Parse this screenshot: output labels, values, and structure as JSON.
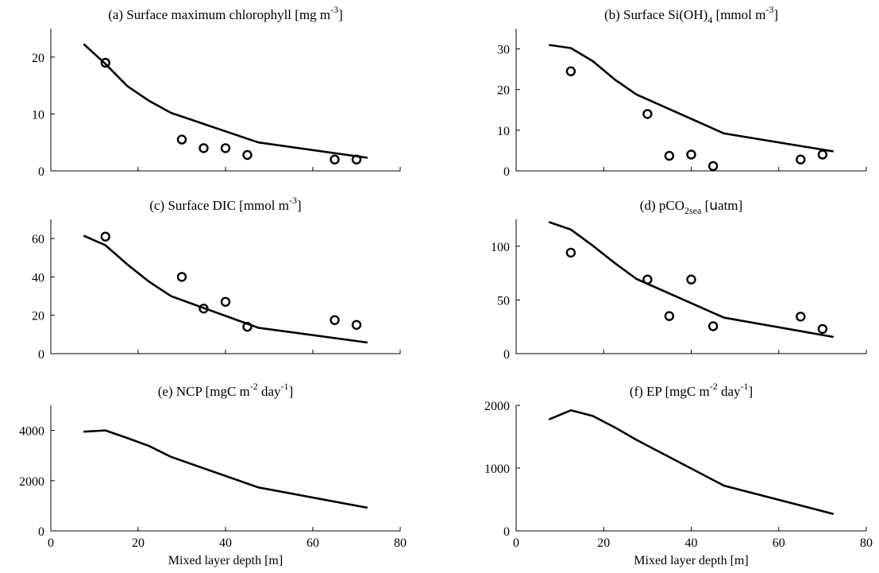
{
  "chart_data": [
    {
      "id": "a",
      "type": "line",
      "title": "(a) Surface maximum chlorophyll [mg m",
      "title_sup": "-3",
      "title_end": "]",
      "xlim": [
        0,
        80
      ],
      "ylim": [
        0,
        25
      ],
      "yticks": [
        0,
        10,
        20
      ],
      "xticks": [],
      "xlabel": "",
      "series": [
        {
          "kind": "line",
          "x": [
            7.5,
            12.5,
            17.5,
            22.5,
            27.5,
            47.5,
            72.5
          ],
          "y": [
            22.3,
            18.8,
            14.9,
            12.3,
            10.2,
            5.0,
            2.3
          ]
        },
        {
          "kind": "points",
          "x": [
            12.5,
            30,
            35,
            40,
            45,
            65,
            70
          ],
          "y": [
            19.0,
            5.5,
            4.0,
            4.0,
            2.8,
            2.0,
            2.0
          ]
        }
      ]
    },
    {
      "id": "b",
      "type": "line",
      "title": "(b) Surface   Si(OH)",
      "title_sub": "4",
      "title_mid": " [mmol m",
      "title_sup": "-3",
      "title_end": "]",
      "xlim": [
        0,
        80
      ],
      "ylim": [
        0,
        35
      ],
      "yticks": [
        0,
        10,
        20,
        30
      ],
      "xticks": [],
      "xlabel": "",
      "series": [
        {
          "kind": "line",
          "x": [
            7.5,
            12.5,
            17.5,
            22.5,
            27.5,
            47.5,
            72.5
          ],
          "y": [
            31.0,
            30.2,
            27.0,
            22.5,
            18.8,
            9.2,
            4.8
          ]
        },
        {
          "kind": "points",
          "x": [
            12.5,
            30,
            35,
            40,
            45,
            65,
            70
          ],
          "y": [
            24.5,
            14.0,
            3.7,
            4.0,
            1.2,
            2.8,
            4.0
          ]
        }
      ]
    },
    {
      "id": "c",
      "type": "line",
      "title": "(c) Surface   DIC [mmol m",
      "title_sup": "-3",
      "title_end": "]",
      "xlim": [
        0,
        80
      ],
      "ylim": [
        0,
        70
      ],
      "yticks": [
        0,
        20,
        40,
        60
      ],
      "xticks": [],
      "xlabel": "",
      "series": [
        {
          "kind": "line",
          "x": [
            7.5,
            12.5,
            17.5,
            22.5,
            27.5,
            47.5,
            72.5
          ],
          "y": [
            61.5,
            56.5,
            46.5,
            37.5,
            30.0,
            13.5,
            5.8
          ]
        },
        {
          "kind": "points",
          "x": [
            12.5,
            30,
            35,
            40,
            45,
            65,
            70
          ],
          "y": [
            61.0,
            40.0,
            23.5,
            27.0,
            14.0,
            17.5,
            15.0
          ]
        }
      ]
    },
    {
      "id": "d",
      "type": "line",
      "title": "(d)   pCO",
      "title_sub": "2sea",
      "title_mid": " [",
      "title_mu": "u",
      "title_end": "atm]",
      "xlim": [
        0,
        80
      ],
      "ylim": [
        0,
        125
      ],
      "yticks": [
        0,
        50,
        100
      ],
      "xticks": [],
      "xlabel": "",
      "series": [
        {
          "kind": "line",
          "x": [
            7.5,
            12.5,
            17.5,
            22.5,
            27.5,
            47.5,
            72.5
          ],
          "y": [
            122.5,
            115.5,
            100.5,
            84.5,
            69.5,
            33.5,
            15.5
          ]
        },
        {
          "kind": "points",
          "x": [
            12.5,
            30,
            35,
            40,
            45,
            65,
            70
          ],
          "y": [
            94.0,
            69.0,
            35.0,
            69.0,
            25.5,
            34.5,
            23.0
          ]
        }
      ]
    },
    {
      "id": "e",
      "type": "line",
      "title": "(e)   NCP [mgC m",
      "title_sup": "-2",
      "title_mid": " day",
      "title_sup2": "-1",
      "title_end": "]",
      "xlim": [
        0,
        80
      ],
      "ylim": [
        0,
        5000
      ],
      "yticks": [
        0,
        2000,
        4000
      ],
      "xticks": [
        0,
        20,
        40,
        60,
        80
      ],
      "xlabel": "Mixed layer depth [m]",
      "series": [
        {
          "kind": "line",
          "x": [
            7.5,
            12.5,
            17.5,
            22.5,
            27.5,
            47.5,
            72.5
          ],
          "y": [
            3950,
            4000,
            3700,
            3380,
            2950,
            1730,
            920
          ]
        }
      ]
    },
    {
      "id": "f",
      "type": "line",
      "title": "(f)   EP [mgC m",
      "title_sup": "-2",
      "title_mid": " day",
      "title_sup2": "-1",
      "title_end": "]",
      "xlim": [
        0,
        80
      ],
      "ylim": [
        0,
        2000
      ],
      "yticks": [
        0,
        1000,
        2000
      ],
      "xticks": [
        0,
        20,
        40,
        60,
        80
      ],
      "xlabel": "Mixed layer depth [m]",
      "series": [
        {
          "kind": "line",
          "x": [
            7.5,
            12.5,
            17.5,
            22.5,
            27.5,
            47.5,
            72.5
          ],
          "y": [
            1775,
            1920,
            1830,
            1650,
            1450,
            720,
            270
          ]
        }
      ]
    }
  ]
}
